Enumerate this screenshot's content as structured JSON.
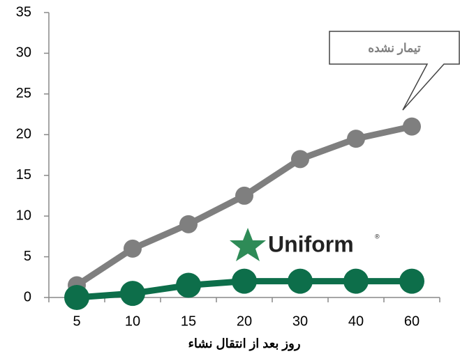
{
  "chart_data": {
    "type": "line",
    "categories": [
      "5",
      "10",
      "15",
      "20",
      "30",
      "40",
      "60"
    ],
    "series": [
      {
        "color": "#7f7f7f",
        "values": [
          1.5,
          6,
          9,
          12.5,
          17,
          19.5,
          21
        ]
      },
      {
        "color": "#0d6e4a",
        "values": [
          0,
          0.5,
          1.5,
          2,
          2,
          2,
          2
        ]
      }
    ],
    "ylim": [
      0,
      35
    ],
    "yticks": [
      0,
      5,
      10,
      15,
      20,
      25,
      30,
      35
    ],
    "xlabel": "روز بعد از انتقال نشاء",
    "annotation": "تیمار نشده",
    "logo": "Uniform"
  }
}
